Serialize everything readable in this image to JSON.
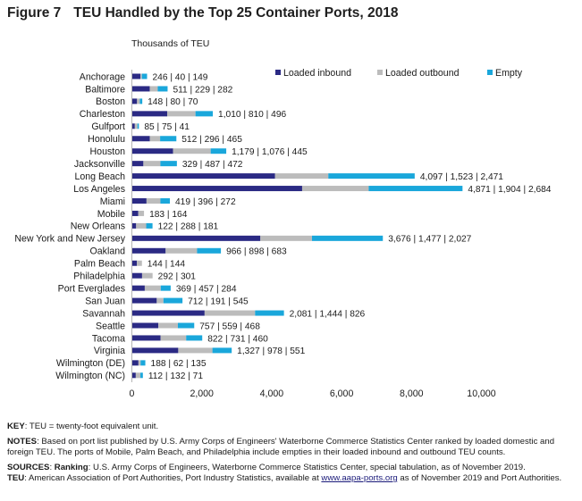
{
  "figure": {
    "number": "Figure 7",
    "title": "TEU Handled by the Top 25 Container Ports, 2018"
  },
  "chart_data": {
    "type": "bar",
    "orientation": "horizontal",
    "stacked": true,
    "unit_label": "Thousands of TEU",
    "xlim": [
      0,
      10000
    ],
    "x_ticks": [
      "0",
      "2,000",
      "4,000",
      "6,000",
      "8,000",
      "10,000"
    ],
    "x_tick_values": [
      0,
      2000,
      4000,
      6000,
      8000,
      10000
    ],
    "legend_position": "top-right",
    "grid": false,
    "categories": [
      "Anchorage",
      "Baltimore",
      "Boston",
      "Charleston",
      "Gulfport",
      "Honolulu",
      "Houston",
      "Jacksonville",
      "Long Beach",
      "Los Angeles",
      "Miami",
      "Mobile",
      "New Orleans",
      "New York and New Jersey",
      "Oakland",
      "Palm Beach",
      "Philadelphia",
      "Port Everglades",
      "San Juan",
      "Savannah",
      "Seattle",
      "Tacoma",
      "Virginia",
      "Wilmington (DE)",
      "Wilmington (NC)"
    ],
    "series": [
      {
        "name": "Loaded inbound",
        "color": "#2b2a84",
        "values": [
          246,
          511,
          148,
          1010,
          85,
          512,
          1179,
          329,
          4097,
          4871,
          419,
          183,
          122,
          3676,
          966,
          144,
          292,
          369,
          712,
          2081,
          757,
          822,
          1327,
          188,
          112
        ]
      },
      {
        "name": "Loaded outbound",
        "color": "#bcbcbc",
        "values": [
          40,
          229,
          80,
          810,
          75,
          296,
          1076,
          487,
          1523,
          1904,
          396,
          164,
          288,
          1477,
          898,
          144,
          301,
          457,
          191,
          1444,
          559,
          731,
          978,
          62,
          132
        ]
      },
      {
        "name": "Empty",
        "color": "#1aa7db",
        "values": [
          149,
          282,
          70,
          496,
          41,
          465,
          445,
          472,
          2471,
          2684,
          272,
          0,
          181,
          2027,
          683,
          0,
          0,
          284,
          545,
          826,
          468,
          460,
          551,
          135,
          71
        ]
      }
    ],
    "data_labels": [
      "246 | 40 | 149",
      "511 | 229 | 282",
      "148 | 80 | 70",
      "1,010 | 810 | 496",
      "85 | 75 | 41",
      "512 | 296 | 465",
      "1,179 | 1,076 | 445",
      "329 | 487 | 472",
      "4,097 | 1,523 | 2,471",
      "4,871 | 1,904 | 2,684",
      "419 | 396 | 272",
      "183 | 164",
      "122 | 288 | 181",
      "3,676 | 1,477 | 2,027",
      "966 | 898 | 683",
      "144 | 144",
      "292 | 301",
      "369 | 457 | 284",
      "712 | 191 | 545",
      "2,081 | 1,444 | 826",
      "757 | 559 | 468",
      "822 | 731 | 460",
      "1,327 | 978 | 551",
      "188 | 62 | 135",
      "112 | 132 | 71"
    ]
  },
  "notes": {
    "key_label": "KEY",
    "key_text": ": TEU = twenty-foot equivalent unit.",
    "notes_label": "NOTES",
    "notes_text": ": Based on port list published by U.S. Army Corps of Engineers' Waterborne Commerce Statistics Center ranked by loaded domestic and foreign TEU. The ports of Mobile, Palm Beach, and Philadelphia include empties in their loaded inbound and outbound TEU counts.",
    "sources_label": "SOURCES",
    "sources_text_1": ": ",
    "ranking_label": "Ranking",
    "ranking_text": ": U.S. Army Corps of Engineers, Waterborne Commerce Statistics Center, special tabulation, as of November 2019.",
    "teu_label": "TEU",
    "teu_text_1": ": American Association of Port Authorities, Port Industry Statistics, available at ",
    "teu_link": "www.aapa-ports.org",
    "teu_text_2": " as of November 2019 and Port Authorities."
  }
}
